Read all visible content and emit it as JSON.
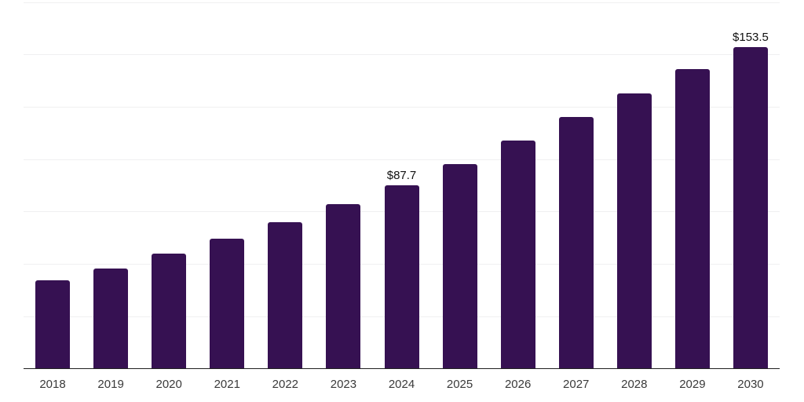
{
  "chart_data": {
    "type": "bar",
    "title": "",
    "xlabel": "",
    "ylabel": "",
    "categories": [
      "2018",
      "2019",
      "2020",
      "2021",
      "2022",
      "2023",
      "2024",
      "2025",
      "2026",
      "2027",
      "2028",
      "2029",
      "2030"
    ],
    "values": [
      42.2,
      47.8,
      54.9,
      62.2,
      70.0,
      78.4,
      87.7,
      97.7,
      108.9,
      120.1,
      131.3,
      142.9,
      153.5
    ],
    "annotations": [
      {
        "category": "2024",
        "text": "$87.7"
      },
      {
        "category": "2030",
        "text": "$153.5"
      }
    ],
    "ylim": [
      0,
      176
    ],
    "grid_interval": 25,
    "grid": "horizontal",
    "legend_position": "none",
    "bar_color": "#361152",
    "axis_color": "#212121",
    "grid_color": "#f0f0f1",
    "value_label_color": "#111111",
    "tick_label_color": "#3a3a3a",
    "background_color": "#ffffff"
  }
}
